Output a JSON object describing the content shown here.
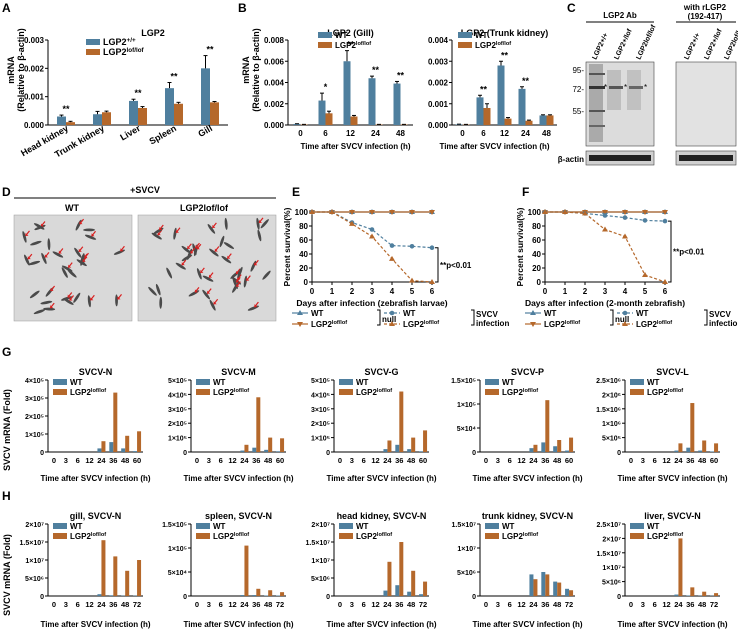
{
  "colors": {
    "wt": "#4f7f9e",
    "ko": "#b5682b",
    "axis": "#000000",
    "gel": "#d9d9d9"
  },
  "panel_letters": [
    "A",
    "B",
    "C",
    "D",
    "E",
    "F",
    "G",
    "H"
  ],
  "common": {
    "mrna_label": "mRNA",
    "rel_label": "(Relative to β-actin)",
    "svcv_fold_label": "SVCV mRNA (Fold)",
    "time_label": "Time after SVCV infection (h)",
    "survival_label": "Percent survival(%)"
  },
  "chart_data": [
    {
      "id": "A",
      "type": "bar",
      "title": "LGP2",
      "ylabel": "mRNA (Relative to β-actin)",
      "ylim": [
        0,
        0.003
      ],
      "yticks": [
        "0.000",
        "0.001",
        "0.002",
        "0.003"
      ],
      "categories": [
        "Head kidney",
        "Trunk kidney",
        "Liver",
        "Spleen",
        "Gill"
      ],
      "legend": [
        "LGP2+/+",
        "LGP2lof/lof"
      ],
      "series": [
        {
          "name": "LGP2+/+",
          "values": [
            0.0003,
            0.00038,
            0.00085,
            0.0013,
            0.002
          ],
          "errors": [
            5e-05,
            0.0001,
            6e-05,
            0.0002,
            0.00045
          ]
        },
        {
          "name": "LGP2lof/lof",
          "values": [
            0.0001,
            0.00045,
            0.0006,
            0.00075,
            0.0008
          ],
          "errors": [
            3e-05,
            4e-05,
            5e-05,
            5e-05,
            3e-05
          ]
        }
      ],
      "significance": [
        "**",
        "",
        "**",
        "**",
        "**"
      ]
    },
    {
      "id": "B1",
      "type": "bar",
      "title": "LGP2 (Gill)",
      "ylabel": "mRNA (Relative to β-actin)",
      "xlabel": "Time after SVCV infection (h)",
      "ylim": [
        0,
        0.008
      ],
      "yticks": [
        "0.000",
        "0.002",
        "0.004",
        "0.006",
        "0.008"
      ],
      "categories": [
        "0",
        "6",
        "12",
        "24",
        "48"
      ],
      "legend": [
        "WT",
        "LGP2lof/lof"
      ],
      "series": [
        {
          "name": "WT",
          "values": [
            0.0001,
            0.0023,
            0.006,
            0.0044,
            0.0039
          ],
          "errors": [
            2e-05,
            0.0007,
            0.001,
            0.0002,
            0.0002
          ]
        },
        {
          "name": "LGP2lof/lof",
          "values": [
            5e-05,
            0.0011,
            0.0008,
            5e-05,
            5e-05
          ],
          "errors": [
            1e-05,
            0.0002,
            0.0001,
            1e-05,
            1e-05
          ]
        }
      ],
      "significance": [
        "",
        "*",
        "**",
        "**",
        "**"
      ]
    },
    {
      "id": "B2",
      "type": "bar",
      "title": "LGP2 (Trunk kidney)",
      "xlabel": "Time after SVCV infection (h)",
      "ylim": [
        0,
        0.004
      ],
      "yticks": [
        "0.000",
        "0.001",
        "0.002",
        "0.003",
        "0.004"
      ],
      "categories": [
        "0",
        "6",
        "12",
        "24",
        "48"
      ],
      "legend": [
        "WT",
        "LGP2lof/lof"
      ],
      "series": [
        {
          "name": "WT",
          "values": [
            3e-05,
            0.0013,
            0.0028,
            0.0017,
            0.00045
          ],
          "errors": [
            1e-05,
            0.0001,
            0.0002,
            0.0001,
            3e-05
          ]
        },
        {
          "name": "LGP2lof/lof",
          "values": [
            2e-05,
            0.0008,
            0.0003,
            0.0002,
            0.00045
          ],
          "errors": [
            1e-05,
            0.0002,
            5e-05,
            3e-05,
            3e-05
          ]
        }
      ],
      "significance": [
        "",
        "**",
        "**",
        "**",
        ""
      ]
    },
    {
      "id": "E",
      "type": "line",
      "xlabel": "Days after infection (zebrafish larvae)",
      "ylabel": "Percent survival(%)",
      "ylim": [
        0,
        100
      ],
      "yticks": [
        "0",
        "20",
        "40",
        "60",
        "80",
        "100"
      ],
      "x": [
        0,
        1,
        2,
        3,
        4,
        5,
        6
      ],
      "series": [
        {
          "name": "WT",
          "group": "null",
          "values": [
            100,
            100,
            100,
            100,
            100,
            100,
            100
          ]
        },
        {
          "name": "LGP2lof/lof",
          "group": "null",
          "values": [
            100,
            100,
            100,
            100,
            100,
            100,
            100
          ]
        },
        {
          "name": "WT",
          "group": "SVCV infection",
          "values": [
            100,
            100,
            85,
            75,
            52,
            51,
            49
          ]
        },
        {
          "name": "LGP2lof/lof",
          "group": "SVCV infection",
          "values": [
            100,
            100,
            83,
            65,
            33,
            2,
            0
          ]
        }
      ],
      "annotation": "**p<0.01"
    },
    {
      "id": "F",
      "type": "line",
      "xlabel": "Days after infection (2-month zebrafish)",
      "ylabel": "Percent survival(%)",
      "ylim": [
        0,
        100
      ],
      "yticks": [
        "0",
        "20",
        "40",
        "60",
        "80",
        "100"
      ],
      "x": [
        0,
        1,
        2,
        3,
        4,
        5,
        6
      ],
      "series": [
        {
          "name": "WT",
          "group": "null",
          "values": [
            100,
            100,
            100,
            100,
            100,
            100,
            100
          ]
        },
        {
          "name": "LGP2lof/lof",
          "group": "null",
          "values": [
            100,
            100,
            100,
            100,
            100,
            100,
            100
          ]
        },
        {
          "name": "WT",
          "group": "SVCV infection",
          "values": [
            100,
            100,
            98,
            95,
            92,
            88,
            87
          ]
        },
        {
          "name": "LGP2lof/lof",
          "group": "SVCV infection",
          "values": [
            100,
            100,
            98,
            75,
            65,
            10,
            0
          ]
        }
      ],
      "annotation": "**p<0.01"
    },
    {
      "id": "G1",
      "type": "bar",
      "title": "SVCV-N",
      "ylabel": "SVCV mRNA (Fold)",
      "xlabel": "Time after SVCV infection (h)",
      "ylim": [
        0,
        400000
      ],
      "yticks": [
        "0",
        "1×10⁵",
        "2×10⁵",
        "3×10⁵",
        "4×10⁵"
      ],
      "categories": [
        "0",
        "3",
        "6",
        "12",
        "24",
        "36",
        "48",
        "60"
      ],
      "legend": [
        "WT",
        "LGP2lof/lof"
      ],
      "series": [
        {
          "name": "WT",
          "values": [
            0,
            0,
            0,
            0,
            20000,
            55000,
            20000,
            5000
          ]
        },
        {
          "name": "LGP2lof/lof",
          "values": [
            0,
            0,
            0,
            0,
            60000,
            330000,
            90000,
            115000
          ]
        }
      ]
    },
    {
      "id": "G2",
      "type": "bar",
      "title": "SVCV-M",
      "xlabel": "Time after SVCV infection (h)",
      "ylim": [
        0,
        500000
      ],
      "yticks": [
        "0",
        "1×10⁵",
        "2×10⁵",
        "3×10⁵",
        "4×10⁵",
        "5×10⁵"
      ],
      "categories": [
        "0",
        "3",
        "6",
        "12",
        "24",
        "36",
        "48",
        "60"
      ],
      "legend": [
        "WT",
        "LGP2lof/lof"
      ],
      "series": [
        {
          "name": "WT",
          "values": [
            0,
            0,
            0,
            0,
            10000,
            30000,
            15000,
            5000
          ]
        },
        {
          "name": "LGP2lof/lof",
          "values": [
            0,
            0,
            0,
            0,
            50000,
            380000,
            100000,
            95000
          ]
        }
      ]
    },
    {
      "id": "G3",
      "type": "bar",
      "title": "SVCV-G",
      "xlabel": "Time after SVCV infection (h)",
      "ylim": [
        0,
        500000
      ],
      "yticks": [
        "0",
        "1×10⁵",
        "2×10⁵",
        "3×10⁵",
        "4×10⁵",
        "5×10⁵"
      ],
      "categories": [
        "0",
        "3",
        "6",
        "12",
        "24",
        "36",
        "48",
        "60"
      ],
      "legend": [
        "WT",
        "LGP2lof/lof"
      ],
      "series": [
        {
          "name": "WT",
          "values": [
            0,
            0,
            0,
            0,
            20000,
            50000,
            20000,
            5000
          ]
        },
        {
          "name": "LGP2lof/lof",
          "values": [
            0,
            0,
            0,
            0,
            80000,
            420000,
            100000,
            150000
          ]
        }
      ]
    },
    {
      "id": "G4",
      "type": "bar",
      "title": "SVCV-P",
      "xlabel": "Time after SVCV infection (h)",
      "ylim": [
        0,
        150000
      ],
      "yticks": [
        "0",
        "5×10⁴",
        "1×10⁵",
        "1.5×10⁵"
      ],
      "categories": [
        "0",
        "3",
        "6",
        "12",
        "24",
        "36",
        "48",
        "60"
      ],
      "legend": [
        "WT",
        "LGP2lof/lof"
      ],
      "series": [
        {
          "name": "WT",
          "values": [
            0,
            0,
            0,
            0,
            8000,
            20000,
            12000,
            3000
          ]
        },
        {
          "name": "LGP2lof/lof",
          "values": [
            0,
            0,
            0,
            0,
            15000,
            108000,
            25000,
            30000
          ]
        }
      ]
    },
    {
      "id": "G5",
      "type": "bar",
      "title": "SVCV-L",
      "xlabel": "Time after SVCV infection (h)",
      "ylim": [
        0,
        2500000
      ],
      "yticks": [
        "0",
        "5×10⁵",
        "1×10⁶",
        "1.5×10⁶",
        "2×10⁶",
        "2.5×10⁶"
      ],
      "categories": [
        "0",
        "3",
        "6",
        "12",
        "24",
        "36",
        "48",
        "60"
      ],
      "legend": [
        "WT",
        "LGP2lof/lof"
      ],
      "series": [
        {
          "name": "WT",
          "values": [
            0,
            0,
            0,
            0,
            50000,
            150000,
            50000,
            20000
          ]
        },
        {
          "name": "LGP2lof/lof",
          "values": [
            0,
            0,
            0,
            0,
            300000,
            1700000,
            400000,
            300000
          ]
        }
      ]
    },
    {
      "id": "H1",
      "type": "bar",
      "title": "gill, SVCV-N",
      "ylabel": "SVCV mRNA (Fold)",
      "xlabel": "Time after SVCV infection (h)",
      "ylim": [
        0,
        20000000
      ],
      "yticks": [
        "0",
        "5×10⁶",
        "1×10⁷",
        "1.5×10⁷",
        "2×10⁷"
      ],
      "categories": [
        "0",
        "3",
        "6",
        "12",
        "24",
        "36",
        "48",
        "72"
      ],
      "legend": [
        "WT",
        "LGP2lof/lof"
      ],
      "series": [
        {
          "name": "WT",
          "values": [
            0,
            0,
            0,
            0,
            500000,
            200000,
            100000,
            100000
          ]
        },
        {
          "name": "LGP2lof/lof",
          "values": [
            0,
            0,
            0,
            0,
            15500000,
            11000000,
            7000000,
            10000000
          ]
        }
      ]
    },
    {
      "id": "H2",
      "type": "bar",
      "title": "spleen, SVCV-N",
      "xlabel": "Time after SVCV infection (h)",
      "ylim": [
        0,
        150000
      ],
      "yticks": [
        "0",
        "5×10⁴",
        "1×10⁵",
        "1.5×10⁵"
      ],
      "categories": [
        "0",
        "3",
        "6",
        "12",
        "24",
        "36",
        "48",
        "72"
      ],
      "legend": [
        "WT",
        "LGP2lof/lof"
      ],
      "series": [
        {
          "name": "WT",
          "values": [
            0,
            0,
            0,
            0,
            2000,
            2000,
            1000,
            1000
          ]
        },
        {
          "name": "LGP2lof/lof",
          "values": [
            0,
            0,
            0,
            0,
            105000,
            15000,
            12000,
            8000
          ]
        }
      ]
    },
    {
      "id": "H3",
      "type": "bar",
      "title": "head kidney, SVCV-N",
      "xlabel": "Time after SVCV infection (h)",
      "ylim": [
        0,
        20000000
      ],
      "yticks": [
        "0",
        "5×10⁶",
        "1×10⁷",
        "1.5×10⁷",
        "2×10⁷"
      ],
      "categories": [
        "0",
        "3",
        "6",
        "12",
        "24",
        "36",
        "48",
        "72"
      ],
      "legend": [
        "WT",
        "LGP2lof/lof"
      ],
      "series": [
        {
          "name": "WT",
          "values": [
            0,
            0,
            0,
            0,
            1500000,
            3000000,
            1200000,
            500000
          ]
        },
        {
          "name": "LGP2lof/lof",
          "values": [
            0,
            0,
            0,
            0,
            9500000,
            15000000,
            7000000,
            4000000
          ]
        }
      ]
    },
    {
      "id": "H4",
      "type": "bar",
      "title": "trunk kidney, SVCV-N",
      "xlabel": "Time after SVCV infection (h)",
      "ylim": [
        0,
        15000000
      ],
      "yticks": [
        "0",
        "5×10⁶",
        "1×10⁷",
        "1.5×10⁷"
      ],
      "categories": [
        "0",
        "3",
        "6",
        "12",
        "24",
        "36",
        "48",
        "72"
      ],
      "legend": [
        "WT",
        "LGP2lof/lof"
      ],
      "series": [
        {
          "name": "WT",
          "values": [
            0,
            0,
            0,
            0,
            4500000,
            5000000,
            3000000,
            1500000
          ]
        },
        {
          "name": "LGP2lof/lof",
          "values": [
            0,
            0,
            0,
            0,
            3500000,
            4500000,
            2800000,
            1200000
          ]
        }
      ]
    },
    {
      "id": "H5",
      "type": "bar",
      "title": "liver, SVCV-N",
      "xlabel": "Time after SVCV infection (h)",
      "ylim": [
        0,
        25000000
      ],
      "yticks": [
        "0",
        "5×10⁶",
        "1×10⁷",
        "1.5×10⁷",
        "2×10⁷",
        "2.5×10⁷"
      ],
      "categories": [
        "0",
        "3",
        "6",
        "12",
        "24",
        "36",
        "48",
        "72"
      ],
      "legend": [
        "WT",
        "LGP2lof/lof"
      ],
      "series": [
        {
          "name": "WT",
          "values": [
            0,
            0,
            0,
            0,
            500000,
            200000,
            100000,
            100000
          ]
        },
        {
          "name": "LGP2lof/lof",
          "values": [
            0,
            0,
            0,
            0,
            20000000,
            3000000,
            1500000,
            1000000
          ]
        }
      ]
    }
  ],
  "panelC": {
    "left_title": "LGP2 Ab",
    "right_title_1": "with rLGP2",
    "right_title_2": "(192-417)",
    "lanes": [
      "LGP2+/+",
      "LGP2+/lof",
      "LGP2lof/lof"
    ],
    "markers": [
      "95-",
      "72-",
      "55-"
    ],
    "loading": "β-actin"
  },
  "panelD": {
    "header": "+SVCV",
    "left": "WT",
    "right": "LGP2lof/lof"
  },
  "survival_legend": {
    "wt": "WT",
    "ko": "LGP2lof/lof",
    "null": "null",
    "svcv_1": "SVCV",
    "svcv_2": "infection"
  }
}
